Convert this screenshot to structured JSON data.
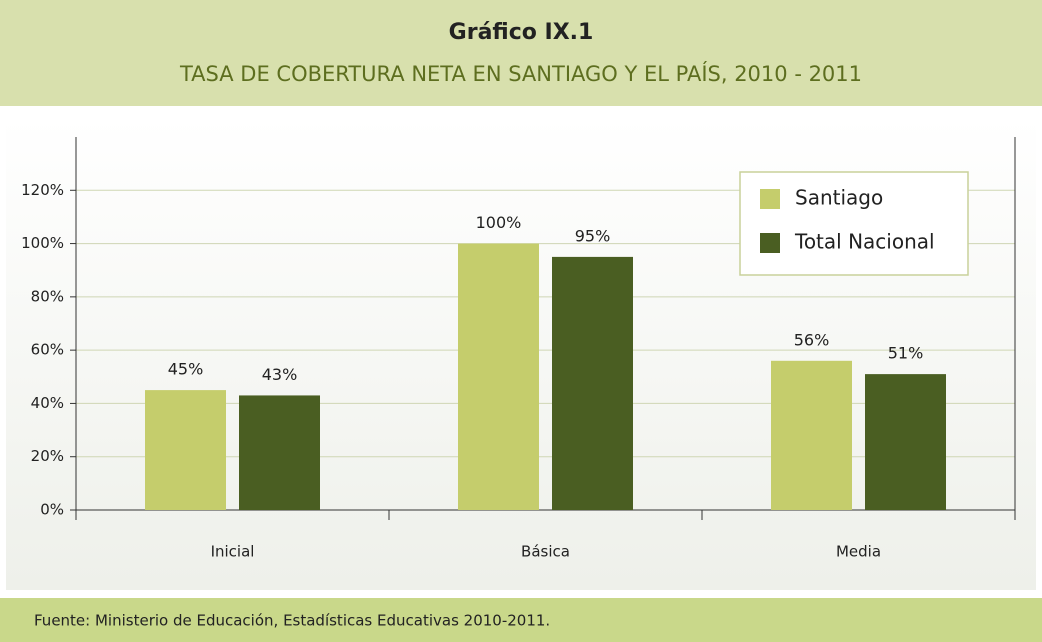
{
  "header": {
    "title": "Gráfico IX.1",
    "subtitle": "TASA DE COBERTURA NETA EN SANTIAGO Y EL PAÍS, 2010 - 2011"
  },
  "chart_data": {
    "type": "bar",
    "categories": [
      "Inicial",
      "Básica",
      "Media"
    ],
    "series": [
      {
        "name": "Santiago",
        "color": "#c5cd6c",
        "values": [
          45,
          100,
          56
        ],
        "value_labels": [
          "45%",
          "100%",
          "56%"
        ]
      },
      {
        "name": "Total Nacional",
        "color": "#4a5e22",
        "values": [
          43,
          95,
          51
        ],
        "value_labels": [
          "43%",
          "95%",
          "51%"
        ]
      }
    ],
    "ylim": [
      0,
      140
    ],
    "yticks": [
      {
        "value": 0,
        "label": "0%"
      },
      {
        "value": 20,
        "label": "20%"
      },
      {
        "value": 40,
        "label": "40%"
      },
      {
        "value": 60,
        "label": "60%"
      },
      {
        "value": 80,
        "label": "80%"
      },
      {
        "value": 100,
        "label": "100%"
      },
      {
        "value": 120,
        "label": "120%"
      }
    ],
    "grid": true,
    "legend": "top-right"
  },
  "footer": {
    "source": "Fuente: Ministerio de Educación, Estadísticas Educativas 2010-2011."
  }
}
